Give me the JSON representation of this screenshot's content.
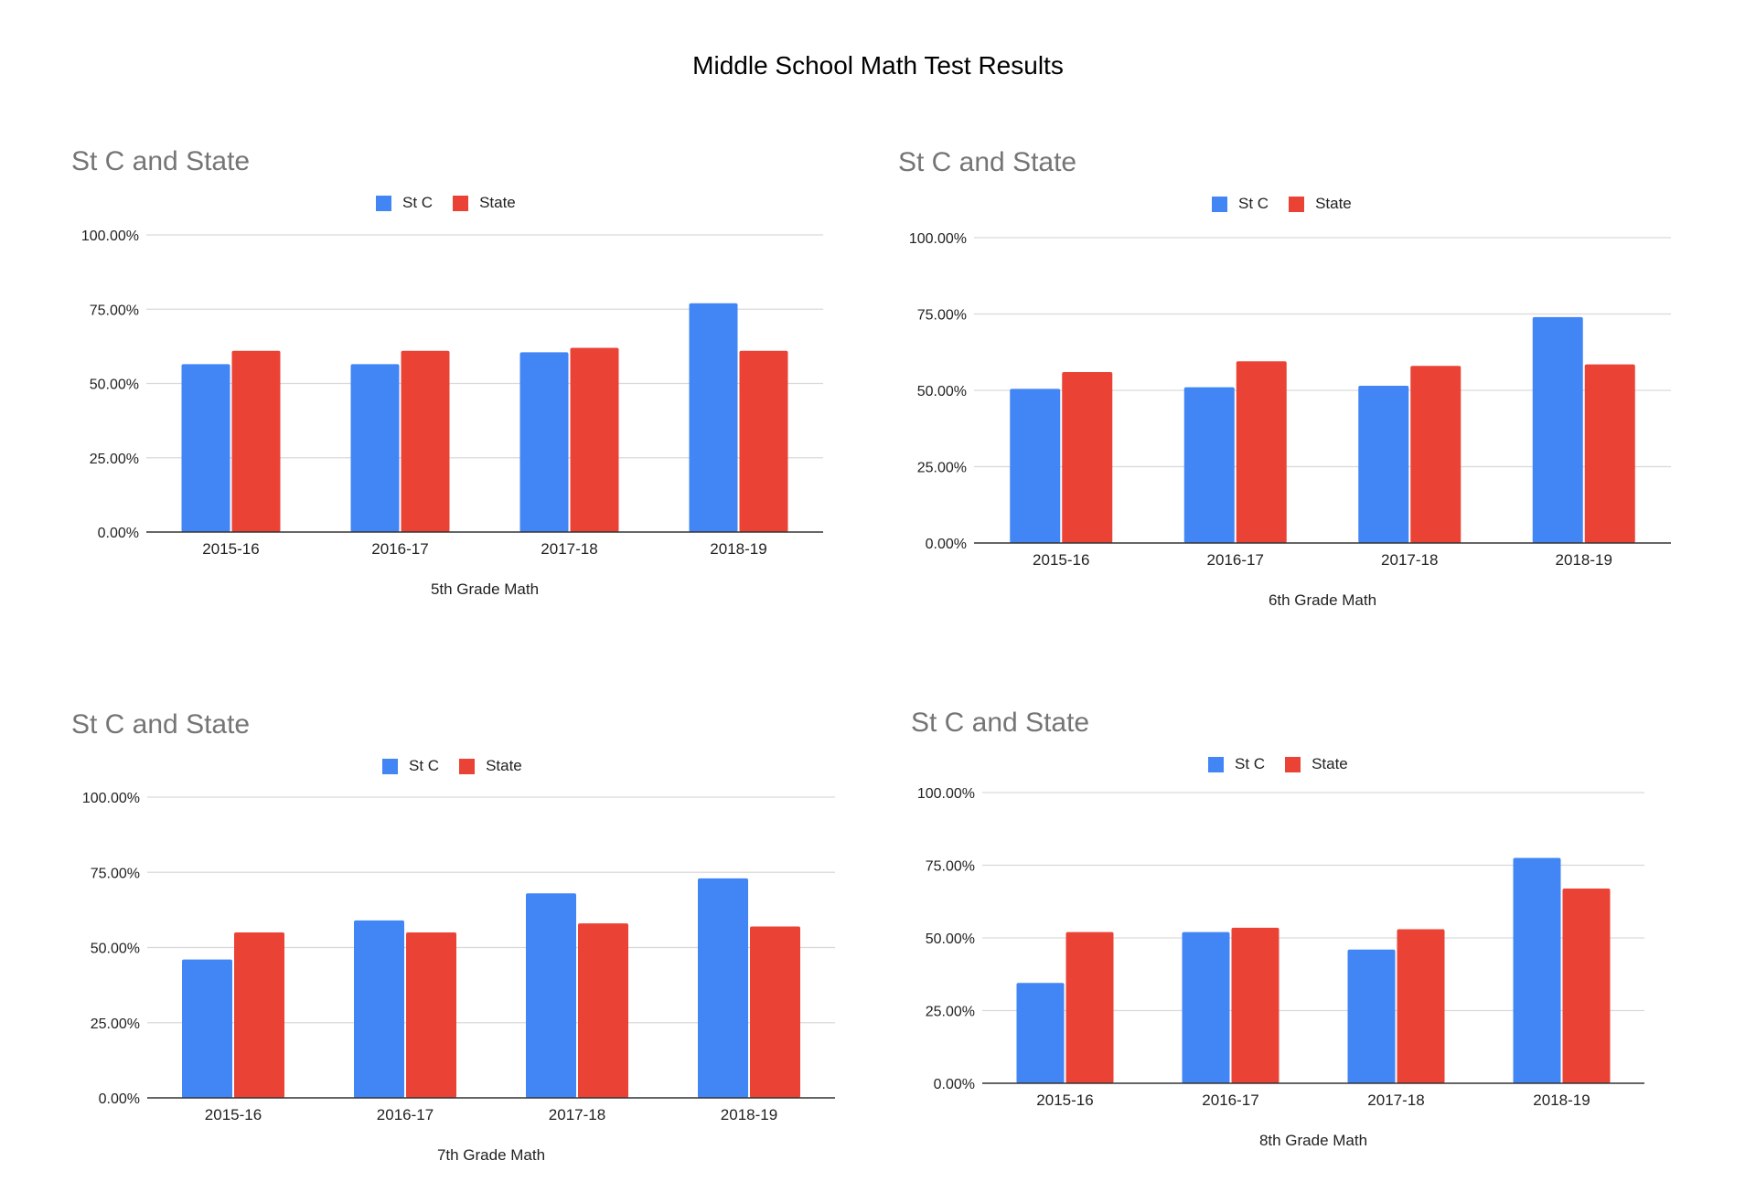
{
  "page": {
    "title": "Middle School Math Test Results"
  },
  "colors": {
    "st_c": "#4285f4",
    "state": "#ea4335",
    "grid": "#d9d9d9",
    "axis": "#333333"
  },
  "chart_data": [
    {
      "type": "bar",
      "title": "St C and State",
      "xlabel": "5th Grade Math",
      "ylabel": "",
      "ylim": [
        0,
        1
      ],
      "yticks": [
        "0.00%",
        "25.00%",
        "50.00%",
        "75.00%",
        "100.00%"
      ],
      "categories": [
        "2015-16",
        "2016-17",
        "2017-18",
        "2018-19"
      ],
      "series": [
        {
          "name": "St C",
          "values": [
            0.565,
            0.565,
            0.605,
            0.77
          ]
        },
        {
          "name": "State",
          "values": [
            0.61,
            0.61,
            0.62,
            0.61
          ]
        }
      ],
      "grid": true,
      "legend": "top-center"
    },
    {
      "type": "bar",
      "title": "St C and State",
      "xlabel": "6th Grade Math",
      "ylabel": "",
      "ylim": [
        0,
        1
      ],
      "yticks": [
        "0.00%",
        "25.00%",
        "50.00%",
        "75.00%",
        "100.00%"
      ],
      "categories": [
        "2015-16",
        "2016-17",
        "2017-18",
        "2018-19"
      ],
      "series": [
        {
          "name": "St C",
          "values": [
            0.505,
            0.51,
            0.515,
            0.74
          ]
        },
        {
          "name": "State",
          "values": [
            0.56,
            0.595,
            0.58,
            0.585
          ]
        }
      ],
      "grid": true,
      "legend": "top-center"
    },
    {
      "type": "bar",
      "title": "St C and State",
      "xlabel": "7th Grade Math",
      "ylabel": "",
      "ylim": [
        0,
        1
      ],
      "yticks": [
        "0.00%",
        "25.00%",
        "50.00%",
        "75.00%",
        "100.00%"
      ],
      "categories": [
        "2015-16",
        "2016-17",
        "2017-18",
        "2018-19"
      ],
      "series": [
        {
          "name": "St C",
          "values": [
            0.46,
            0.59,
            0.68,
            0.73
          ]
        },
        {
          "name": "State",
          "values": [
            0.55,
            0.55,
            0.58,
            0.57
          ]
        }
      ],
      "grid": true,
      "legend": "top-center"
    },
    {
      "type": "bar",
      "title": "St C and State",
      "xlabel": "8th Grade Math",
      "ylabel": "",
      "ylim": [
        0,
        1
      ],
      "yticks": [
        "0.00%",
        "25.00%",
        "50.00%",
        "75.00%",
        "100.00%"
      ],
      "categories": [
        "2015-16",
        "2016-17",
        "2017-18",
        "2018-19"
      ],
      "series": [
        {
          "name": "St C",
          "values": [
            0.345,
            0.52,
            0.46,
            0.775
          ]
        },
        {
          "name": "State",
          "values": [
            0.52,
            0.535,
            0.53,
            0.67
          ]
        }
      ],
      "grid": true,
      "legend": "top-center"
    }
  ]
}
